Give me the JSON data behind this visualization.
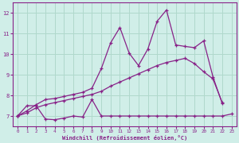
{
  "bg_color": "#d0eee8",
  "grid_color": "#b0d8cc",
  "line_color": "#882288",
  "xlabel": "Windchill (Refroidissement éolien,°C)",
  "xlim": [
    -0.5,
    23.5
  ],
  "ylim": [
    6.5,
    12.5
  ],
  "yticks": [
    7,
    8,
    9,
    10,
    11,
    12
  ],
  "xticks": [
    0,
    1,
    2,
    3,
    4,
    5,
    6,
    7,
    8,
    9,
    10,
    11,
    12,
    13,
    14,
    15,
    16,
    17,
    18,
    19,
    20,
    21,
    22,
    23
  ],
  "line1_x": [
    0,
    1,
    2,
    3,
    4,
    5,
    6,
    7,
    8,
    9,
    10,
    11,
    12,
    13,
    14,
    15,
    16,
    17,
    18,
    19,
    20,
    21,
    22,
    23
  ],
  "line1_y": [
    7.0,
    7.5,
    7.5,
    6.85,
    6.82,
    6.9,
    7.0,
    6.95,
    7.8,
    7.0,
    7.0,
    7.0,
    7.0,
    7.0,
    7.0,
    7.0,
    7.0,
    7.0,
    7.0,
    7.0,
    7.0,
    7.0,
    7.0,
    7.1
  ],
  "line2_x": [
    0,
    1,
    2,
    3,
    4,
    5,
    6,
    7,
    8,
    9,
    10,
    11,
    12,
    13,
    14,
    15,
    16,
    17,
    18,
    19,
    20,
    21,
    22
  ],
  "line2_y": [
    7.0,
    7.15,
    7.4,
    7.55,
    7.65,
    7.75,
    7.85,
    7.95,
    8.05,
    8.2,
    8.45,
    8.65,
    8.85,
    9.05,
    9.25,
    9.45,
    9.6,
    9.7,
    9.8,
    9.55,
    9.15,
    8.8,
    7.65
  ],
  "line3_x": [
    0,
    1,
    2,
    3,
    4,
    5,
    6,
    7,
    8,
    9,
    10,
    11,
    12,
    13,
    14,
    15,
    16,
    17,
    18,
    19,
    20,
    21,
    22
  ],
  "line3_y": [
    7.0,
    7.25,
    7.55,
    7.8,
    7.85,
    7.95,
    8.05,
    8.15,
    8.35,
    9.3,
    10.55,
    11.3,
    10.05,
    9.45,
    10.25,
    11.6,
    12.15,
    10.45,
    10.38,
    10.32,
    10.65,
    8.9,
    7.6
  ]
}
